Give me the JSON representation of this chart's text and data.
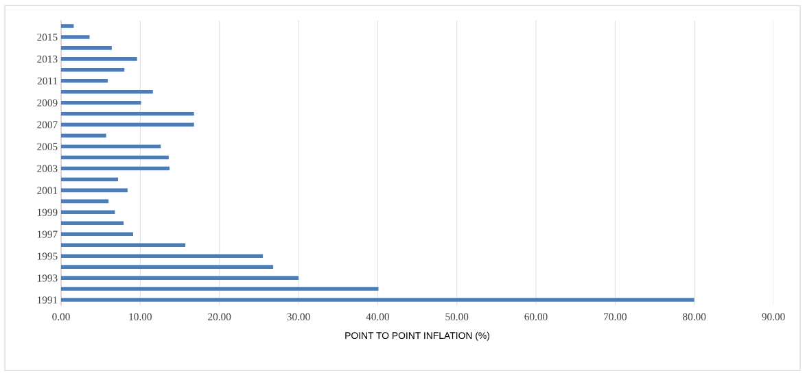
{
  "chart_data": {
    "type": "bar",
    "orientation": "horizontal",
    "xlabel": "POINT TO POINT INFLATION (%)",
    "categories": [
      null,
      "2015",
      null,
      "2013",
      null,
      "2011",
      null,
      "2009",
      null,
      "2007",
      null,
      "2005",
      null,
      "2003",
      null,
      "2001",
      null,
      "1999",
      null,
      "1997",
      null,
      "1995",
      null,
      "1993",
      null,
      "1991"
    ],
    "values": [
      1.6,
      3.6,
      6.4,
      9.6,
      8.0,
      5.9,
      11.6,
      10.1,
      16.8,
      16.8,
      5.7,
      12.6,
      13.6,
      13.7,
      7.2,
      8.4,
      6.0,
      6.8,
      7.9,
      9.1,
      15.7,
      25.5,
      26.8,
      30.0,
      40.1,
      80.0
    ],
    "color": "#4a7ebb",
    "xlim": [
      0,
      90
    ],
    "xticks": [
      {
        "value": 0,
        "label": "0.00"
      },
      {
        "value": 10,
        "label": "10.00"
      },
      {
        "value": 20,
        "label": "20.00"
      },
      {
        "value": 30,
        "label": "30.00"
      },
      {
        "value": 40,
        "label": "40.00"
      },
      {
        "value": 50,
        "label": "50.00"
      },
      {
        "value": 60,
        "label": "60.00"
      },
      {
        "value": 70,
        "label": "70.00"
      },
      {
        "value": 80,
        "label": "80.00"
      },
      {
        "value": 90,
        "label": "90.00"
      }
    ],
    "grid": "x"
  }
}
